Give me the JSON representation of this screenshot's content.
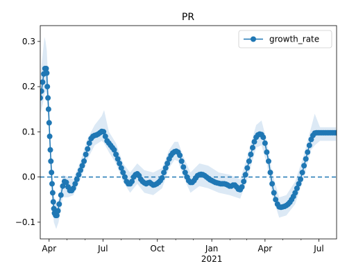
{
  "chart_data": {
    "type": "line",
    "title": "PR",
    "xlabel": "",
    "ylabel": "",
    "x_start": "2020-03-17",
    "x_end": "2021-07-31",
    "ylim": [
      -0.137,
      0.335
    ],
    "yticks": [
      -0.1,
      0.0,
      0.1,
      0.2,
      0.3
    ],
    "ytick_labels": [
      "−0.1",
      "0.0",
      "0.1",
      "0.2",
      "0.3"
    ],
    "xticks": [
      {
        "date": "2020-04-01",
        "label": "Apr",
        "sublabel": ""
      },
      {
        "date": "2020-07-01",
        "label": "Jul",
        "sublabel": ""
      },
      {
        "date": "2020-10-01",
        "label": "Oct",
        "sublabel": ""
      },
      {
        "date": "2021-01-01",
        "label": "Jan",
        "sublabel": "2021"
      },
      {
        "date": "2021-04-01",
        "label": "Apr",
        "sublabel": ""
      },
      {
        "date": "2021-07-01",
        "label": "Jul",
        "sublabel": ""
      }
    ],
    "reference_line": {
      "y": 0.0,
      "style": "dashed",
      "color": "#1f77b4"
    },
    "legend": {
      "position": "top-right",
      "entries": [
        "growth_rate"
      ]
    },
    "series": [
      {
        "name": "growth_rate",
        "color": "#1f77b4",
        "band_color": "#dce9f5",
        "points": [
          [
            "2020-03-17",
            0.175
          ],
          [
            "2020-03-19",
            0.19
          ],
          [
            "2020-03-21",
            0.21
          ],
          [
            "2020-03-23",
            0.228
          ],
          [
            "2020-03-25",
            0.24
          ],
          [
            "2020-03-27",
            0.24
          ],
          [
            "2020-03-28",
            0.23
          ],
          [
            "2020-03-29",
            0.2
          ],
          [
            "2020-03-30",
            0.175
          ],
          [
            "2020-03-31",
            0.15
          ],
          [
            "2020-04-01",
            0.12
          ],
          [
            "2020-04-02",
            0.09
          ],
          [
            "2020-04-03",
            0.06
          ],
          [
            "2020-04-04",
            0.035
          ],
          [
            "2020-04-05",
            0.01
          ],
          [
            "2020-04-06",
            -0.015
          ],
          [
            "2020-04-07",
            -0.035
          ],
          [
            "2020-04-08",
            -0.055
          ],
          [
            "2020-04-09",
            -0.07
          ],
          [
            "2020-04-10",
            -0.08
          ],
          [
            "2020-04-12",
            -0.085
          ],
          [
            "2020-04-14",
            -0.085
          ],
          [
            "2020-04-16",
            -0.075
          ],
          [
            "2020-04-18",
            -0.06
          ],
          [
            "2020-04-21",
            -0.04
          ],
          [
            "2020-04-24",
            -0.02
          ],
          [
            "2020-04-27",
            -0.01
          ],
          [
            "2020-04-30",
            -0.012
          ],
          [
            "2020-05-03",
            -0.022
          ],
          [
            "2020-05-06",
            -0.03
          ],
          [
            "2020-05-09",
            -0.03
          ],
          [
            "2020-05-12",
            -0.025
          ],
          [
            "2020-05-15",
            -0.015
          ],
          [
            "2020-05-18",
            -0.005
          ],
          [
            "2020-05-21",
            0.005
          ],
          [
            "2020-05-24",
            0.015
          ],
          [
            "2020-05-27",
            0.025
          ],
          [
            "2020-05-30",
            0.035
          ],
          [
            "2020-06-02",
            0.05
          ],
          [
            "2020-06-05",
            0.062
          ],
          [
            "2020-06-08",
            0.075
          ],
          [
            "2020-06-11",
            0.085
          ],
          [
            "2020-06-14",
            0.09
          ],
          [
            "2020-06-17",
            0.092
          ],
          [
            "2020-06-20",
            0.093
          ],
          [
            "2020-06-23",
            0.095
          ],
          [
            "2020-06-26",
            0.098
          ],
          [
            "2020-06-29",
            0.101
          ],
          [
            "2020-07-02",
            0.1
          ],
          [
            "2020-07-05",
            0.09
          ],
          [
            "2020-07-08",
            0.08
          ],
          [
            "2020-07-11",
            0.075
          ],
          [
            "2020-07-14",
            0.07
          ],
          [
            "2020-07-17",
            0.065
          ],
          [
            "2020-07-20",
            0.06
          ],
          [
            "2020-07-23",
            0.05
          ],
          [
            "2020-07-26",
            0.04
          ],
          [
            "2020-07-29",
            0.03
          ],
          [
            "2020-08-01",
            0.02
          ],
          [
            "2020-08-04",
            0.01
          ],
          [
            "2020-08-07",
            0.0
          ],
          [
            "2020-08-10",
            -0.01
          ],
          [
            "2020-08-13",
            -0.015
          ],
          [
            "2020-08-16",
            -0.015
          ],
          [
            "2020-08-19",
            -0.01
          ],
          [
            "2020-08-22",
            0.0
          ],
          [
            "2020-08-25",
            0.005
          ],
          [
            "2020-08-28",
            0.007
          ],
          [
            "2020-08-31",
            0.003
          ],
          [
            "2020-09-03",
            -0.005
          ],
          [
            "2020-09-06",
            -0.01
          ],
          [
            "2020-09-09",
            -0.013
          ],
          [
            "2020-09-12",
            -0.015
          ],
          [
            "2020-09-15",
            -0.013
          ],
          [
            "2020-09-18",
            -0.012
          ],
          [
            "2020-09-21",
            -0.015
          ],
          [
            "2020-09-24",
            -0.018
          ],
          [
            "2020-09-27",
            -0.017
          ],
          [
            "2020-09-30",
            -0.015
          ],
          [
            "2020-10-03",
            -0.012
          ],
          [
            "2020-10-06",
            -0.008
          ],
          [
            "2020-10-09",
            -0.002
          ],
          [
            "2020-10-12",
            0.01
          ],
          [
            "2020-10-15",
            0.02
          ],
          [
            "2020-10-18",
            0.03
          ],
          [
            "2020-10-21",
            0.04
          ],
          [
            "2020-10-24",
            0.048
          ],
          [
            "2020-10-27",
            0.053
          ],
          [
            "2020-10-30",
            0.056
          ],
          [
            "2020-11-02",
            0.057
          ],
          [
            "2020-11-05",
            0.055
          ],
          [
            "2020-11-08",
            0.048
          ],
          [
            "2020-11-11",
            0.035
          ],
          [
            "2020-11-14",
            0.022
          ],
          [
            "2020-11-17",
            0.01
          ],
          [
            "2020-11-20",
            0.0
          ],
          [
            "2020-11-23",
            -0.008
          ],
          [
            "2020-11-26",
            -0.012
          ],
          [
            "2020-11-29",
            -0.012
          ],
          [
            "2020-12-02",
            -0.008
          ],
          [
            "2020-12-05",
            -0.002
          ],
          [
            "2020-12-08",
            0.003
          ],
          [
            "2020-12-11",
            0.005
          ],
          [
            "2020-12-14",
            0.006
          ],
          [
            "2020-12-17",
            0.005
          ],
          [
            "2020-12-20",
            0.003
          ],
          [
            "2020-12-23",
            0.0
          ],
          [
            "2020-12-26",
            -0.003
          ],
          [
            "2020-12-29",
            -0.006
          ],
          [
            "2021-01-01",
            -0.008
          ],
          [
            "2021-01-04",
            -0.01
          ],
          [
            "2021-01-07",
            -0.012
          ],
          [
            "2021-01-10",
            -0.013
          ],
          [
            "2021-01-13",
            -0.014
          ],
          [
            "2021-01-16",
            -0.015
          ],
          [
            "2021-01-19",
            -0.015
          ],
          [
            "2021-01-22",
            -0.015
          ],
          [
            "2021-01-25",
            -0.016
          ],
          [
            "2021-01-28",
            -0.018
          ],
          [
            "2021-01-31",
            -0.02
          ],
          [
            "2021-02-03",
            -0.02
          ],
          [
            "2021-02-06",
            -0.018
          ],
          [
            "2021-02-09",
            -0.018
          ],
          [
            "2021-02-12",
            -0.022
          ],
          [
            "2021-02-15",
            -0.027
          ],
          [
            "2021-02-18",
            -0.028
          ],
          [
            "2021-02-21",
            -0.022
          ],
          [
            "2021-02-24",
            -0.01
          ],
          [
            "2021-02-27",
            0.005
          ],
          [
            "2021-03-02",
            0.02
          ],
          [
            "2021-03-05",
            0.035
          ],
          [
            "2021-03-08",
            0.05
          ],
          [
            "2021-03-11",
            0.065
          ],
          [
            "2021-03-14",
            0.078
          ],
          [
            "2021-03-17",
            0.088
          ],
          [
            "2021-03-20",
            0.093
          ],
          [
            "2021-03-23",
            0.095
          ],
          [
            "2021-03-26",
            0.094
          ],
          [
            "2021-03-29",
            0.088
          ],
          [
            "2021-04-01",
            0.075
          ],
          [
            "2021-04-04",
            0.055
          ],
          [
            "2021-04-07",
            0.035
          ],
          [
            "2021-04-10",
            0.01
          ],
          [
            "2021-04-13",
            -0.015
          ],
          [
            "2021-04-16",
            -0.035
          ],
          [
            "2021-04-19",
            -0.05
          ],
          [
            "2021-04-22",
            -0.06
          ],
          [
            "2021-04-25",
            -0.066
          ],
          [
            "2021-04-28",
            -0.067
          ],
          [
            "2021-05-01",
            -0.066
          ],
          [
            "2021-05-04",
            -0.065
          ],
          [
            "2021-05-07",
            -0.063
          ],
          [
            "2021-05-10",
            -0.06
          ],
          [
            "2021-05-13",
            -0.056
          ],
          [
            "2021-05-16",
            -0.05
          ],
          [
            "2021-05-19",
            -0.043
          ],
          [
            "2021-05-22",
            -0.035
          ],
          [
            "2021-05-25",
            -0.025
          ],
          [
            "2021-05-28",
            -0.015
          ],
          [
            "2021-05-31",
            -0.005
          ],
          [
            "2021-06-03",
            0.01
          ],
          [
            "2021-06-06",
            0.025
          ],
          [
            "2021-06-09",
            0.04
          ],
          [
            "2021-06-12",
            0.055
          ],
          [
            "2021-06-15",
            0.07
          ],
          [
            "2021-06-18",
            0.083
          ],
          [
            "2021-06-21",
            0.092
          ],
          [
            "2021-06-24",
            0.097
          ],
          [
            "2021-06-27",
            0.098
          ],
          [
            "2021-06-30",
            0.098
          ],
          [
            "2021-07-03",
            0.098
          ],
          [
            "2021-07-06",
            0.098
          ],
          [
            "2021-07-09",
            0.098
          ],
          [
            "2021-07-12",
            0.098
          ],
          [
            "2021-07-15",
            0.098
          ],
          [
            "2021-07-18",
            0.098
          ],
          [
            "2021-07-21",
            0.098
          ],
          [
            "2021-07-24",
            0.098
          ],
          [
            "2021-07-27",
            0.098
          ],
          [
            "2021-07-30",
            0.098
          ]
        ],
        "band": [
          [
            "2020-03-17",
            0.14,
            0.22
          ],
          [
            "2020-03-21",
            0.16,
            0.27
          ],
          [
            "2020-03-24",
            0.18,
            0.31
          ],
          [
            "2020-03-26",
            0.19,
            0.3
          ],
          [
            "2020-03-28",
            0.18,
            0.28
          ],
          [
            "2020-03-31",
            0.12,
            0.2
          ],
          [
            "2020-04-03",
            0.03,
            0.1
          ],
          [
            "2020-04-06",
            -0.05,
            0.02
          ],
          [
            "2020-04-09",
            -0.1,
            -0.04
          ],
          [
            "2020-04-13",
            -0.115,
            -0.06
          ],
          [
            "2020-04-17",
            -0.1,
            -0.05
          ],
          [
            "2020-04-24",
            -0.045,
            0.005
          ],
          [
            "2020-05-03",
            -0.045,
            0.0
          ],
          [
            "2020-05-12",
            -0.04,
            -0.005
          ],
          [
            "2020-05-24",
            -0.005,
            0.035
          ],
          [
            "2020-06-05",
            0.04,
            0.085
          ],
          [
            "2020-06-17",
            0.07,
            0.115
          ],
          [
            "2020-06-29",
            0.08,
            0.135
          ],
          [
            "2020-07-03",
            0.075,
            0.148
          ],
          [
            "2020-07-11",
            0.055,
            0.1
          ],
          [
            "2020-07-23",
            0.03,
            0.075
          ],
          [
            "2020-08-04",
            -0.01,
            0.03
          ],
          [
            "2020-08-16",
            -0.035,
            0.01
          ],
          [
            "2020-08-28",
            -0.015,
            0.03
          ],
          [
            "2020-09-09",
            -0.035,
            0.015
          ],
          [
            "2020-09-24",
            -0.04,
            0.01
          ],
          [
            "2020-10-09",
            -0.025,
            0.02
          ],
          [
            "2020-10-21",
            0.02,
            0.06
          ],
          [
            "2020-10-30",
            0.038,
            0.078
          ],
          [
            "2020-11-05",
            0.035,
            0.078
          ],
          [
            "2020-11-14",
            0.0,
            0.045
          ],
          [
            "2020-11-26",
            -0.035,
            0.01
          ],
          [
            "2020-12-11",
            -0.02,
            0.03
          ],
          [
            "2020-12-26",
            -0.025,
            0.025
          ],
          [
            "2021-01-13",
            -0.035,
            0.01
          ],
          [
            "2021-01-31",
            -0.04,
            0.005
          ],
          [
            "2021-02-18",
            -0.048,
            -0.005
          ],
          [
            "2021-03-02",
            -0.005,
            0.045
          ],
          [
            "2021-03-17",
            0.065,
            0.115
          ],
          [
            "2021-03-26",
            0.07,
            0.125
          ],
          [
            "2021-04-04",
            0.03,
            0.08
          ],
          [
            "2021-04-13",
            -0.04,
            0.01
          ],
          [
            "2021-04-25",
            -0.09,
            -0.045
          ],
          [
            "2021-05-07",
            -0.085,
            -0.04
          ],
          [
            "2021-05-22",
            -0.06,
            -0.01
          ],
          [
            "2021-06-06",
            0.0,
            0.05
          ],
          [
            "2021-06-18",
            0.06,
            0.11
          ],
          [
            "2021-06-24",
            0.07,
            0.14
          ],
          [
            "2021-07-03",
            0.08,
            0.11
          ],
          [
            "2021-07-30",
            0.08,
            0.11
          ]
        ]
      }
    ]
  }
}
